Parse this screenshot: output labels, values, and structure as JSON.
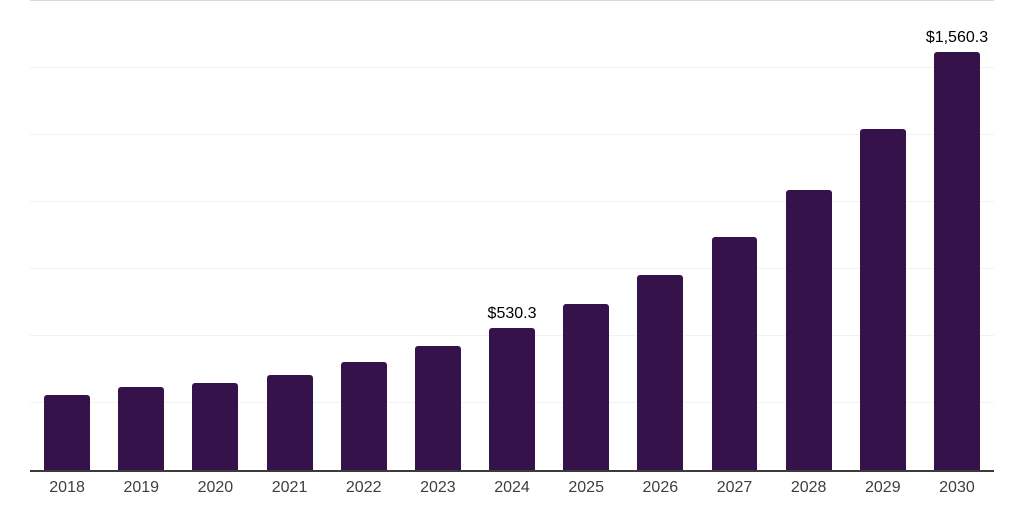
{
  "chart_data": {
    "type": "bar",
    "categories": [
      "2018",
      "2019",
      "2020",
      "2021",
      "2022",
      "2023",
      "2024",
      "2025",
      "2026",
      "2027",
      "2028",
      "2029",
      "2030"
    ],
    "values": [
      279,
      310,
      324,
      353,
      404,
      462,
      530.3,
      620,
      729,
      870,
      1044,
      1272,
      1560.3
    ],
    "value_labels": {
      "2024": "$530.3",
      "2030": "$1,560.3"
    },
    "ylim": [
      0,
      1750
    ],
    "grid_interval": 250,
    "grid": "horizontal",
    "legend": "none",
    "colors": {
      "bar": "#36124A",
      "axis_line": "#3B3B3B",
      "gridline": "#F2F2F5",
      "top_gridline": "#D9D9DC",
      "tick_label": "#3E3E3E",
      "value_label": "#000000"
    }
  }
}
